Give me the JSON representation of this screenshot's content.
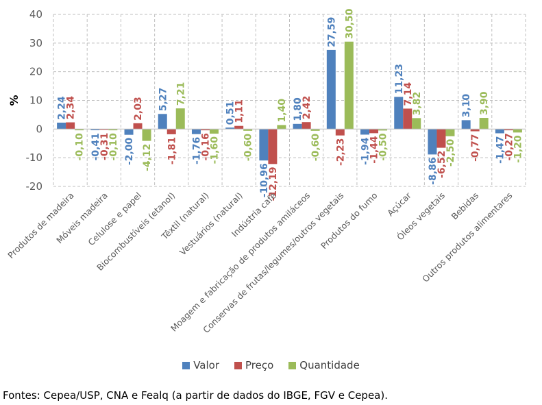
{
  "chart_data": {
    "type": "bar",
    "title": "",
    "xlabel": "",
    "ylabel": "%",
    "ylim": [
      -20,
      40
    ],
    "yticks": [
      -20,
      -10,
      0,
      10,
      20,
      30,
      40
    ],
    "ytick_labels": [
      "-20",
      "-10",
      "0",
      "10",
      "20",
      "30",
      "40"
    ],
    "grid": true,
    "legend_position": "bottom",
    "categories": [
      "Produtos de madeira",
      "Móveis madeira",
      "Celulose e papel",
      "Biocombustíveis (etanol)",
      "Têxtil (natural)",
      "Vestuários (natural)",
      "Indústria café",
      "Moagem e fabricação de produtos amiláceos",
      "Conservas de frutas/legumes/outros vegetais",
      "Produtos do fumo",
      "Açúcar",
      "Óleos vegetais",
      "Bebidas",
      "Outros produtos alimentares"
    ],
    "series": [
      {
        "name": "Valor",
        "color": "#4F81BD",
        "values": [
          2.24,
          -0.41,
          -2.0,
          5.27,
          -1.76,
          0.51,
          -10.96,
          1.8,
          27.59,
          -1.94,
          11.23,
          -8.86,
          3.1,
          -1.47
        ],
        "labels": [
          "2,24",
          "-0,41",
          "-2,00",
          "5,27",
          "-1,76",
          "0,51",
          "-10,96",
          "1,80",
          "27,59",
          "-1,94",
          "11,23",
          "-8,86",
          "3,10",
          "-1,47"
        ]
      },
      {
        "name": "Preço",
        "color": "#C0504D",
        "values": [
          2.34,
          -0.31,
          2.03,
          -1.81,
          -0.16,
          1.11,
          -12.19,
          2.42,
          -2.23,
          -1.44,
          7.14,
          -6.52,
          -0.77,
          -0.27
        ],
        "labels": [
          "2,34",
          "-0,31",
          "2,03",
          "-1,81",
          "-0,16",
          "1,11",
          "-12,19",
          "2,42",
          "-2,23",
          "-1,44",
          "7,14",
          "-6,52",
          "-0,77",
          "-0,27"
        ]
      },
      {
        "name": "Quantidade",
        "color": "#9BBB59",
        "values": [
          -0.1,
          -0.1,
          -4.12,
          7.21,
          -1.6,
          -0.6,
          1.4,
          -0.6,
          30.5,
          -0.5,
          3.82,
          -2.5,
          3.9,
          -1.2
        ],
        "labels": [
          "-0,10",
          "-0,10",
          "-4,12",
          "7,21",
          "-1,60",
          "-0,60",
          "1,40",
          "-0,60",
          "30,50",
          "-0,50",
          "3,82",
          "-2,50",
          "3,90",
          "-1,20"
        ]
      }
    ]
  },
  "footer": {
    "source": "Fontes: Cepea/USP, CNA e Fealq (a partir de dados do IBGE, FGV e Cepea)."
  }
}
